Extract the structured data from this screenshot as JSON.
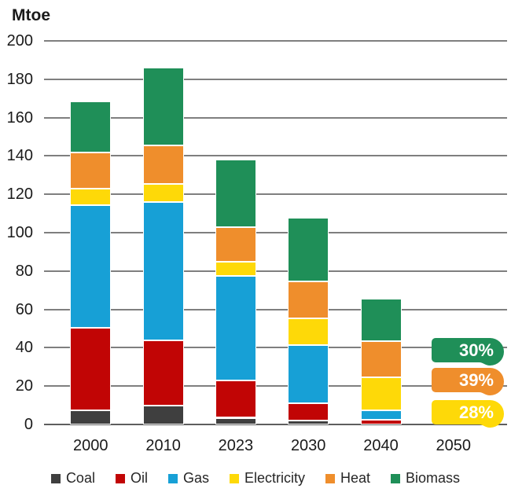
{
  "chart_data": {
    "type": "bar",
    "stacked": true,
    "title": "",
    "ylabel": "Mtoe",
    "xlabel": "",
    "ylim": [
      0,
      200
    ],
    "ytick_step": 20,
    "yticks": [
      0,
      20,
      40,
      60,
      80,
      100,
      120,
      140,
      160,
      180,
      200
    ],
    "grid": true,
    "legend_position": "bottom",
    "categories": [
      "2000",
      "2010",
      "2023",
      "2030",
      "2040",
      "2050"
    ],
    "series": [
      {
        "name": "Coal",
        "color": "#3f3f3f",
        "values": [
          7.5,
          10,
          3.5,
          2,
          0,
          null
        ]
      },
      {
        "name": "Oil",
        "color": "#c10505",
        "values": [
          43,
          34,
          19.5,
          9,
          2.5,
          null
        ]
      },
      {
        "name": "Gas",
        "color": "#17a0d6",
        "values": [
          64,
          72,
          54.5,
          30.5,
          5,
          null
        ]
      },
      {
        "name": "Electricity",
        "color": "#fed908",
        "values": [
          8.5,
          9.5,
          7.5,
          14,
          17,
          null
        ]
      },
      {
        "name": "Heat",
        "color": "#ef8e2c",
        "values": [
          19,
          20,
          18,
          19,
          19,
          null
        ]
      },
      {
        "name": "Biomass",
        "color": "#1f8f58",
        "values": [
          26.5,
          40.5,
          35,
          33.5,
          22,
          null
        ]
      }
    ],
    "totals": [
      168.5,
      186,
      138,
      108,
      65.5,
      null
    ],
    "annotations": [
      {
        "category": "2050",
        "series": "Biomass",
        "label": "30%",
        "color": "#1f8f58"
      },
      {
        "category": "2050",
        "series": "Heat",
        "label": "39%",
        "color": "#ef8e2c"
      },
      {
        "category": "2050",
        "series": "Electricity",
        "label": "28%",
        "color": "#fed908"
      }
    ]
  }
}
